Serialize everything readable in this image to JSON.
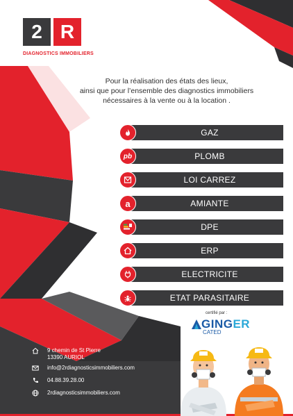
{
  "brand": {
    "logo_left": "2",
    "logo_right": "R",
    "tagline": "DIAGNOSTICS IMMOBILIERS",
    "colors": {
      "red": "#e3222c",
      "dark": "#3a3a3c",
      "darker": "#2f2f31"
    }
  },
  "intro": {
    "line1": "Pour la réalisation des états des lieux,",
    "line2": "ainsi que pour l’ensemble des diagnostics immobiliers",
    "line3": "nécessaires à la vente ou à la location ."
  },
  "services": [
    {
      "label": "GAZ",
      "icon": "flame-icon"
    },
    {
      "label": "PLOMB",
      "icon": "pb-icon",
      "icon_text": "pb"
    },
    {
      "label": "LOI CARREZ",
      "icon": "floorplan-icon"
    },
    {
      "label": "AMIANTE",
      "icon": "asbestos-icon",
      "icon_text": "a"
    },
    {
      "label": "DPE",
      "icon": "energy-label-icon"
    },
    {
      "label": "ERP",
      "icon": "house-icon"
    },
    {
      "label": "ELECTRICITE",
      "icon": "plug-icon"
    },
    {
      "label": "ETAT PARASITAIRE",
      "icon": "termite-icon"
    }
  ],
  "certification": {
    "label": "certifié par :",
    "brand": "GINGER",
    "brand_a": "GING",
    "brand_b": "ER",
    "sub": "CATED"
  },
  "contact": {
    "address_line1": "9 chemin de St Pierre",
    "address_line2": "13390 AURIOL",
    "email": "info@2rdiagnosticsimmobiliers.com",
    "phone": "04.88.39.28.00",
    "website": "2rdiagnosticsimmobiliers.com"
  }
}
